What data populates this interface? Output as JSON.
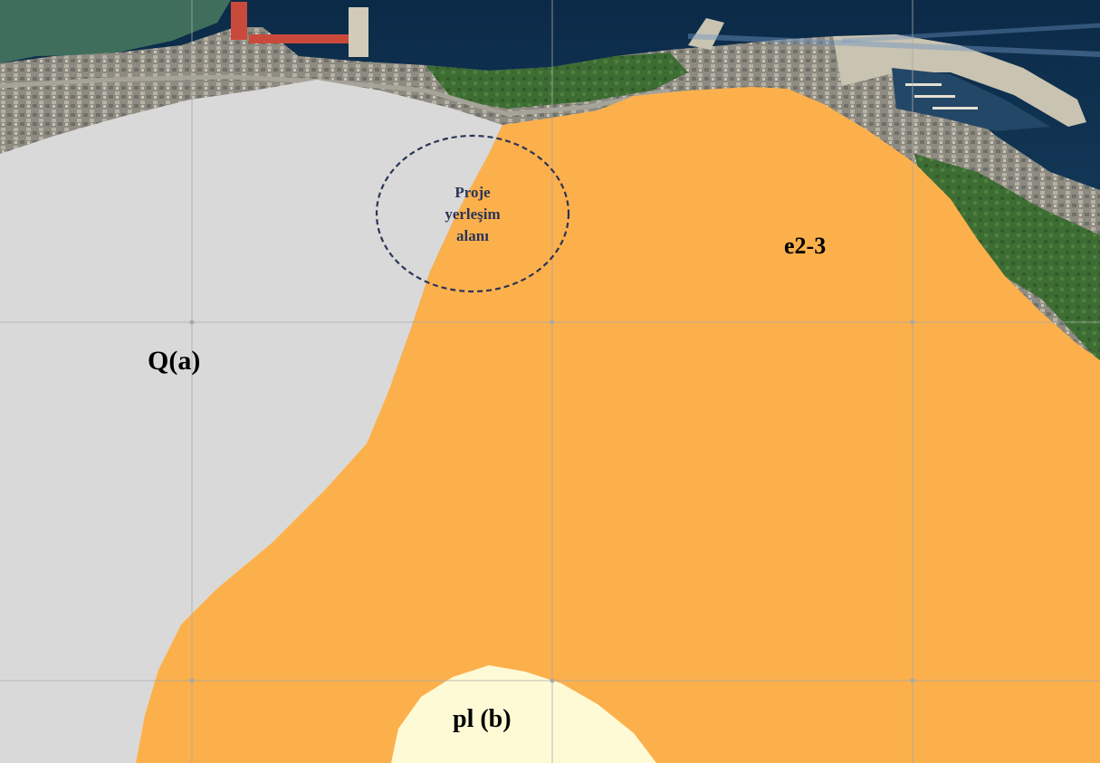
{
  "map": {
    "units": {
      "alluvium": {
        "code": "Q(a)",
        "color": "#d9d9d9"
      },
      "eocene": {
        "code": "e2-3",
        "color": "#fcb04c"
      },
      "pliocene": {
        "code": "pl (b)",
        "color": "#fffad6"
      }
    },
    "project_site": {
      "label_line1": "Proje",
      "label_line2": "yerleşim",
      "label_line3": "alanı",
      "outline_color": "#2a3556"
    },
    "basemap": {
      "sea_color": "#0f2f4d",
      "shore_color": "#4f6a4a",
      "breakwater_color": "#c9c3b1"
    },
    "grid_color": "#a8a8a8"
  }
}
